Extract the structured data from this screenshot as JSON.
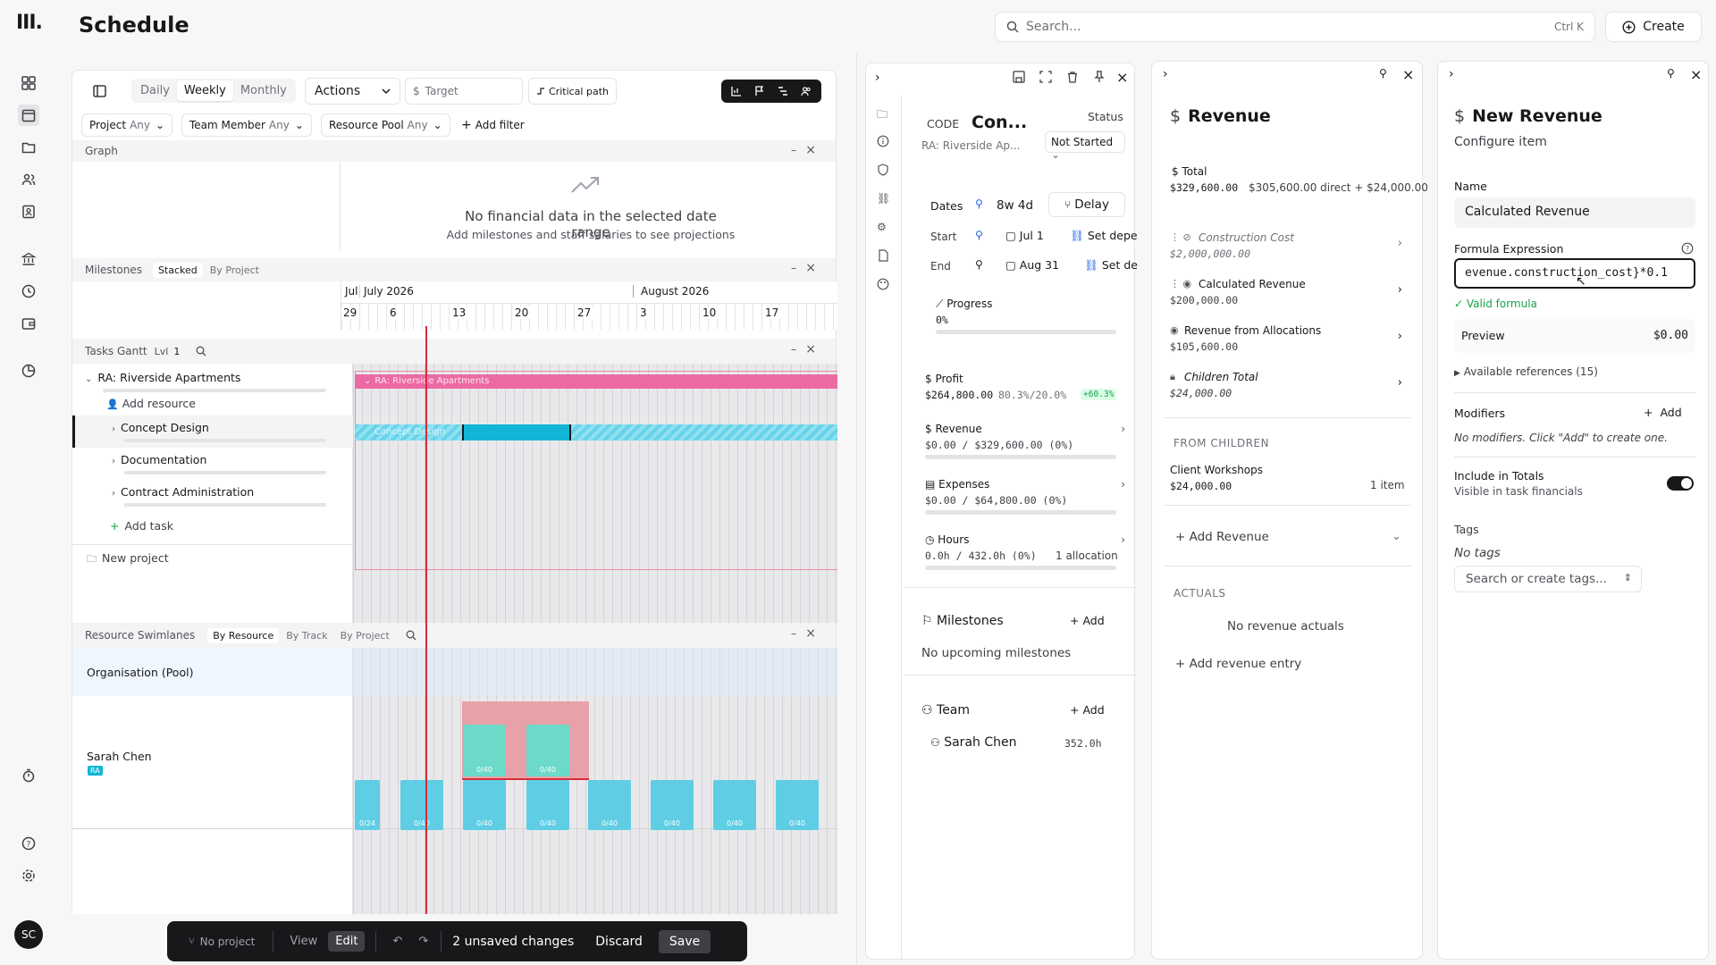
{
  "app": {
    "logo": "III.",
    "title": "Schedule",
    "avatar": "SC"
  },
  "search": {
    "placeholder": "Search...",
    "shortcut": "Ctrl K",
    "create_label": "Create"
  },
  "toolbar": {
    "views": [
      "Daily",
      "Weekly",
      "Monthly"
    ],
    "active_view": "Weekly",
    "actions_label": "Actions",
    "target_label": "Target",
    "critical_path_label": "Critical path"
  },
  "filters": {
    "items": [
      {
        "label": "Project",
        "value": "Any"
      },
      {
        "label": "Team Member",
        "value": "Any"
      },
      {
        "label": "Resource Pool",
        "value": "Any"
      }
    ],
    "add_label": "Add filter"
  },
  "graph": {
    "title": "Graph",
    "empty_title": "No financial data in the selected date range",
    "empty_sub": "Add milestones and staff salaries to see projections"
  },
  "milestones": {
    "title": "Milestones",
    "tabs": [
      "Stacked",
      "By Project"
    ],
    "active_tab": "Stacked",
    "months": [
      "Jul",
      "July 2026",
      "August 2026"
    ],
    "days": [
      "29",
      "6",
      "13",
      "20",
      "27",
      "3",
      "10",
      "17"
    ]
  },
  "gantt": {
    "title": "Tasks Gantt",
    "level_label": "Lvl",
    "level_value": "1",
    "project_name": "RA: Riverside Apartments",
    "project_bar_label": "RA: Riverside Apartments",
    "add_resource": "Add resource",
    "tasks": [
      "Concept Design",
      "Documentation",
      "Contract Administration"
    ],
    "task_bar_label": "Concept Design",
    "add_task": "Add task",
    "new_project": "New project"
  },
  "swimlanes": {
    "title": "Resource Swimlanes",
    "tabs": [
      "By Resource",
      "By Track",
      "By Project"
    ],
    "active_tab": "By Resource",
    "pool_label": "Organisation (Pool)",
    "resource_name": "Sarah Chen",
    "resource_badge": "RA",
    "blocks": [
      "0/24",
      "0/40",
      "0/40",
      "0/40",
      "0/40",
      "0/40",
      "0/40",
      "0/40"
    ],
    "overlay_blocks": [
      "0/40",
      "0/40"
    ]
  },
  "bottombar": {
    "project": "No project",
    "view": "View",
    "edit": "Edit",
    "unsaved": "2 unsaved changes",
    "discard": "Discard",
    "save": "Save"
  },
  "task_panel": {
    "code_label": "CODE",
    "code_value": "Con...",
    "subtitle": "RA: Riverside Ap...",
    "status_label": "Status",
    "status_value": "Not Started",
    "dates_label": "Dates",
    "duration": "8w 4d",
    "delay_label": "Delay",
    "start_label": "Start",
    "start_date": "Jul 1",
    "start_dep": "Set depe",
    "end_label": "End",
    "end_date": "Aug 31",
    "end_dep": "Set de",
    "progress_label": "Progress",
    "progress_value": "0%",
    "profit_label": "Profit",
    "profit_value": "$264,800.00",
    "profit_ratio": "80.3%/20.0%",
    "profit_delta": "+60.3%",
    "revenue_label": "Revenue",
    "revenue_value": "$0.00 / $329,600.00 (0%)",
    "expenses_label": "Expenses",
    "expenses_value": "$0.00 / $64,800.00 (0%)",
    "hours_label": "Hours",
    "hours_value": "0.0h / 432.0h (0%)",
    "hours_alloc": "1 allocation",
    "milestones_label": "Milestones",
    "milestones_add": "Add",
    "milestones_empty": "No upcoming milestones",
    "team_label": "Team",
    "team_add": "Add",
    "team_member": "Sarah Chen",
    "team_hours": "352.0h"
  },
  "revenue_panel": {
    "title": "Revenue",
    "total_label": "Total",
    "total_value": "$329,600.00",
    "total_breakdown": "$305,600.00 direct + $24,000.00",
    "items": [
      {
        "name": "Construction Cost",
        "value": "$2,000,000.00"
      },
      {
        "name": "Calculated Revenue",
        "value": "$200,000.00"
      },
      {
        "name": "Revenue from Allocations",
        "value": "$105,600.00"
      },
      {
        "name": "Children Total",
        "value": "$24,000.00"
      }
    ],
    "from_children_label": "FROM CHILDREN",
    "child_name": "Client Workshops",
    "child_value": "$24,000.00",
    "child_count": "1 item",
    "add_revenue": "Add Revenue",
    "actuals_label": "ACTUALS",
    "actuals_empty": "No revenue actuals",
    "add_entry": "Add revenue entry"
  },
  "new_revenue_panel": {
    "title": "New Revenue",
    "subtitle": "Configure item",
    "name_label": "Name",
    "name_value": "Calculated Revenue",
    "formula_label": "Formula Expression",
    "formula_value": "evenue.construction_cost}*0.1",
    "valid_label": "Valid formula",
    "preview_label": "Preview",
    "preview_value": "$0.00",
    "refs_label": "Available references (15)",
    "modifiers_label": "Modifiers",
    "modifiers_add": "Add",
    "modifiers_empty": "No modifiers. Click \"Add\" to create one.",
    "include_label": "Include in Totals",
    "include_sub": "Visible in task financials",
    "include_on": true,
    "tags_label": "Tags",
    "tags_empty": "No tags",
    "tags_placeholder": "Search or create tags..."
  },
  "colors": {
    "project_bar": "#ec6aa3",
    "task_bar": "#13b5d6",
    "resource_block": "#5fcde4",
    "overlay": "#e8a1a8",
    "today_line": "#d62c3a",
    "accent_green": "#16a34a"
  }
}
